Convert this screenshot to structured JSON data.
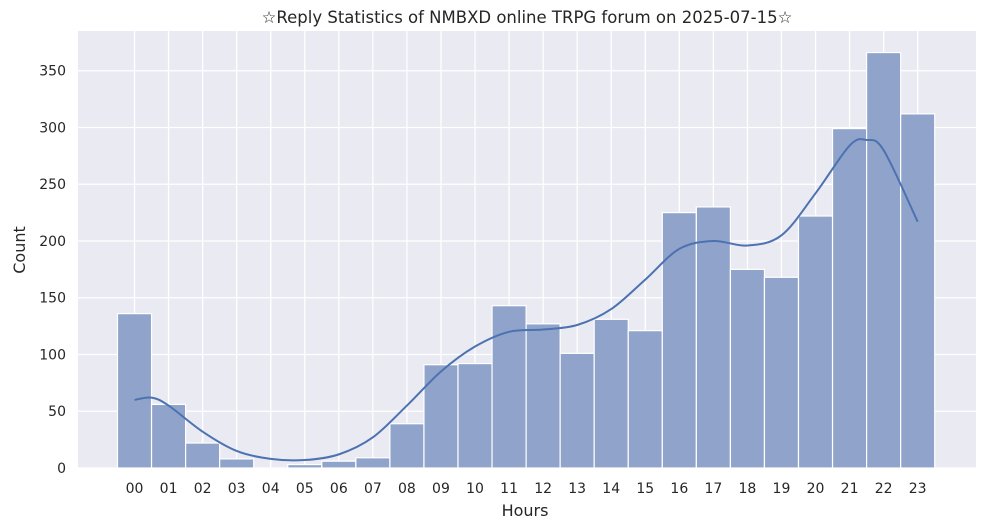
{
  "chart_data": {
    "type": "bar",
    "title": "☆Reply Statistics of NMBXD online TRPG forum on 2025-07-15☆",
    "xlabel": "Hours",
    "ylabel": "Count",
    "categories": [
      "00",
      "01",
      "02",
      "03",
      "04",
      "05",
      "06",
      "07",
      "08",
      "09",
      "10",
      "11",
      "12",
      "13",
      "14",
      "15",
      "16",
      "17",
      "18",
      "19",
      "20",
      "21",
      "22",
      "23"
    ],
    "values": [
      136,
      56,
      22,
      8,
      0,
      3,
      6,
      9,
      39,
      91,
      92,
      143,
      127,
      101,
      131,
      121,
      225,
      230,
      175,
      168,
      222,
      299,
      366,
      312
    ],
    "kde_curve": {
      "x": [
        0,
        0.5,
        1,
        2,
        3,
        4,
        5,
        6,
        7,
        8,
        9,
        10,
        11,
        12,
        13,
        14,
        15,
        16,
        17,
        18,
        19,
        20,
        21,
        21.5,
        22,
        23
      ],
      "y": [
        60,
        62,
        55,
        32,
        15,
        8,
        7,
        12,
        27,
        55,
        85,
        107,
        120,
        122,
        126,
        140,
        166,
        193,
        200,
        196,
        205,
        242,
        284,
        289,
        280,
        217
      ]
    },
    "yticks": [
      0,
      50,
      100,
      150,
      200,
      250,
      300,
      350
    ],
    "ylim": [
      0,
      385
    ],
    "grid": true,
    "legend": "none",
    "colors": {
      "bar_fill": "#8fa3cb",
      "bar_stroke": "#ffffff",
      "kde_line": "#4c72b0",
      "plot_background": "#eaeaf2",
      "grid": "#ffffff"
    }
  }
}
